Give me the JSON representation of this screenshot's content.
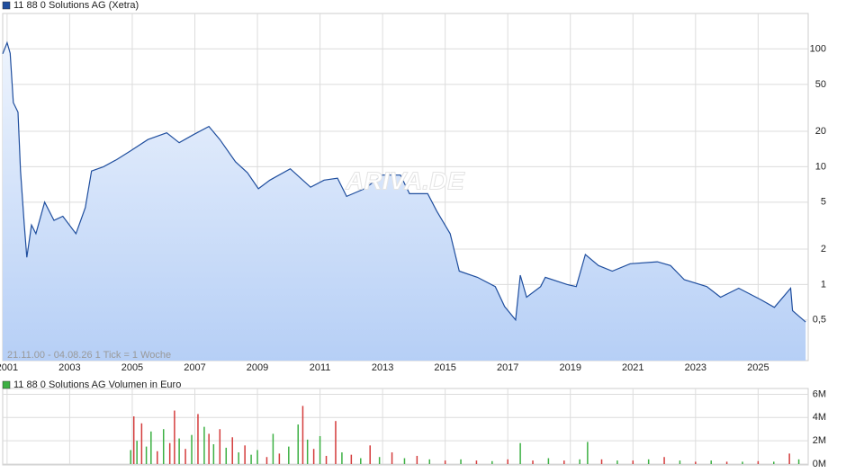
{
  "chart_data": [
    {
      "type": "line",
      "title": "11 88 0 Solutions AG (Xetra)",
      "info": "21.11.00 - 04.08.26   1 Tick = 1 Woche",
      "watermark": "ARIVA.DE",
      "log_y": true,
      "grid": true,
      "xlim": [
        2000.86,
        2026.6
      ],
      "xticks": [
        2001,
        2003,
        2005,
        2007,
        2009,
        2011,
        2013,
        2015,
        2017,
        2019,
        2021,
        2023,
        2025
      ],
      "ylim": [
        0.23,
        200
      ],
      "yticks": [
        {
          "value": 0.5,
          "label": "0,5"
        },
        1,
        2,
        5,
        10,
        20,
        50,
        100
      ],
      "series": [
        {
          "name": "11 88 0 Solutions AG (Xetra)",
          "color": "#1f4e9e",
          "x": [
            2000.86,
            2001.0,
            2001.1,
            2001.2,
            2001.35,
            2001.43,
            2001.55,
            2001.63,
            2001.78,
            2001.92,
            2002.2,
            2002.5,
            2002.78,
            2003.2,
            2003.5,
            2003.7,
            2004.08,
            2004.5,
            2004.94,
            2005.5,
            2006.1,
            2006.5,
            2006.95,
            2007.45,
            2007.8,
            2008.3,
            2008.68,
            2009.03,
            2009.4,
            2010.05,
            2010.7,
            2011.13,
            2011.56,
            2011.85,
            2012.42,
            2013.0,
            2013.57,
            2013.86,
            2014.44,
            2014.73,
            2015.16,
            2015.45,
            2016.03,
            2016.6,
            2016.9,
            2017.25,
            2017.4,
            2017.6,
            2018.05,
            2018.2,
            2018.9,
            2019.19,
            2019.48,
            2019.9,
            2020.34,
            2020.91,
            2021.78,
            2022.2,
            2022.64,
            2023.36,
            2023.8,
            2024.38,
            2025.1,
            2025.52,
            2026.04,
            2026.1,
            2026.52
          ],
          "values": [
            91,
            113,
            92,
            35,
            29,
            9.2,
            3.2,
            1.7,
            3.2,
            2.7,
            5,
            3.5,
            3.8,
            2.7,
            4.5,
            9.2,
            10,
            11.5,
            13.6,
            17,
            19.4,
            16,
            18.7,
            22,
            17,
            11,
            8.9,
            6.5,
            7.7,
            9.6,
            6.7,
            7.7,
            8,
            5.6,
            6.5,
            8.5,
            8.5,
            5.9,
            5.9,
            4.2,
            2.7,
            1.3,
            1.15,
            0.96,
            0.65,
            0.5,
            1.2,
            0.78,
            0.96,
            1.15,
            1.0,
            0.96,
            1.8,
            1.45,
            1.3,
            1.5,
            1.56,
            1.45,
            1.1,
            0.96,
            0.78,
            0.93,
            0.74,
            0.64,
            0.93,
            0.6,
            0.48
          ]
        }
      ]
    },
    {
      "type": "bar",
      "title": "11 88 0 Solutions AG Volumen in Euro",
      "legend_color": "#3cb043",
      "grid": true,
      "xlim": [
        2000.86,
        2026.6
      ],
      "ylim": [
        0,
        6500000
      ],
      "yticks": [
        {
          "value": 0,
          "label": "0M"
        },
        {
          "value": 2000000,
          "label": "2M"
        },
        {
          "value": 4000000,
          "label": "4M"
        },
        {
          "value": 6000000,
          "label": "6M"
        }
      ],
      "x": [
        2004.95,
        2005.05,
        2005.15,
        2005.3,
        2005.45,
        2005.6,
        2005.8,
        2006.0,
        2006.2,
        2006.35,
        2006.5,
        2006.7,
        2006.9,
        2007.1,
        2007.3,
        2007.45,
        2007.6,
        2007.8,
        2008.0,
        2008.2,
        2008.4,
        2008.6,
        2008.8,
        2009.0,
        2009.3,
        2009.5,
        2009.7,
        2010.0,
        2010.3,
        2010.45,
        2010.6,
        2010.8,
        2011.0,
        2011.2,
        2011.5,
        2011.7,
        2012.0,
        2012.3,
        2012.6,
        2012.9,
        2013.3,
        2013.7,
        2014.1,
        2014.5,
        2015.0,
        2015.5,
        2016.0,
        2016.5,
        2017.0,
        2017.4,
        2017.8,
        2018.3,
        2018.8,
        2019.3,
        2019.55,
        2020.0,
        2020.5,
        2021.0,
        2021.5,
        2022.0,
        2022.5,
        2023.0,
        2023.5,
        2024.0,
        2024.5,
        2025.0,
        2025.5,
        2026.0,
        2026.3
      ],
      "values": [
        1200000,
        4100000,
        2000000,
        3500000,
        1500000,
        2800000,
        1100000,
        3000000,
        1800000,
        4600000,
        2200000,
        1300000,
        2500000,
        4300000,
        3200000,
        2600000,
        1700000,
        3000000,
        1400000,
        2300000,
        1000000,
        1600000,
        800000,
        1200000,
        600000,
        2600000,
        900000,
        1500000,
        3400000,
        5000000,
        2100000,
        1300000,
        2400000,
        700000,
        3700000,
        1000000,
        800000,
        500000,
        1600000,
        600000,
        1000000,
        500000,
        700000,
        400000,
        300000,
        400000,
        300000,
        250000,
        400000,
        1800000,
        300000,
        500000,
        300000,
        400000,
        1900000,
        400000,
        300000,
        300000,
        400000,
        600000,
        300000,
        200000,
        300000,
        200000,
        200000,
        250000,
        200000,
        900000,
        400000
      ],
      "colors": [
        "#3cb043",
        "#d43c3c",
        "#3cb043",
        "#d43c3c",
        "#3cb043",
        "#3cb043",
        "#d43c3c",
        "#3cb043",
        "#d43c3c",
        "#d43c3c",
        "#3cb043",
        "#d43c3c",
        "#3cb043",
        "#d43c3c",
        "#3cb043",
        "#d43c3c",
        "#3cb043",
        "#d43c3c",
        "#3cb043",
        "#d43c3c",
        "#3cb043",
        "#d43c3c",
        "#3cb043",
        "#3cb043",
        "#d43c3c",
        "#3cb043",
        "#d43c3c",
        "#3cb043",
        "#3cb043",
        "#d43c3c",
        "#3cb043",
        "#d43c3c",
        "#3cb043",
        "#d43c3c",
        "#d43c3c",
        "#3cb043",
        "#d43c3c",
        "#3cb043",
        "#d43c3c",
        "#3cb043",
        "#d43c3c",
        "#3cb043",
        "#d43c3c",
        "#3cb043",
        "#d43c3c",
        "#3cb043",
        "#d43c3c",
        "#3cb043",
        "#d43c3c",
        "#3cb043",
        "#d43c3c",
        "#3cb043",
        "#d43c3c",
        "#3cb043",
        "#3cb043",
        "#d43c3c",
        "#3cb043",
        "#d43c3c",
        "#3cb043",
        "#d43c3c",
        "#3cb043",
        "#d43c3c",
        "#3cb043",
        "#d43c3c",
        "#3cb043",
        "#d43c3c",
        "#3cb043",
        "#d43c3c",
        "#3cb043"
      ]
    }
  ]
}
